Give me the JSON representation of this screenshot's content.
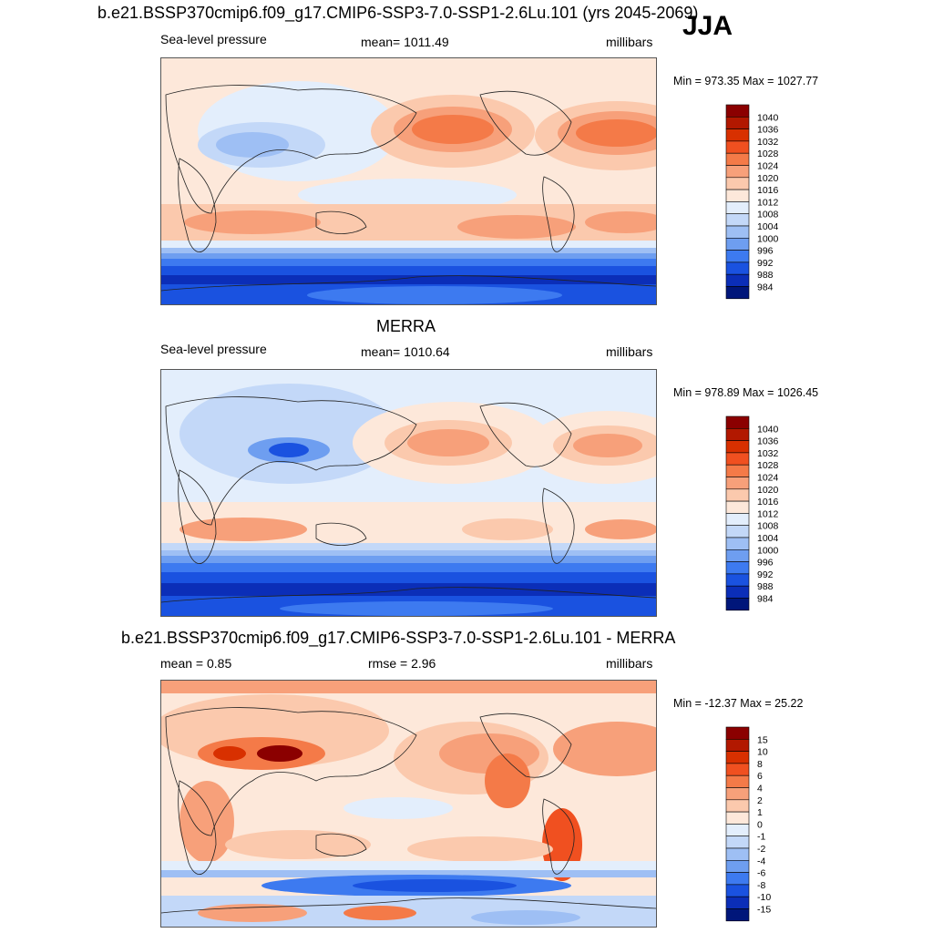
{
  "figure": {
    "title": "b.e21.BSSP370cmip6.f09_g17.CMIP6-SSP3-7.0-SSP1-2.6Lu.101 (yrs 2045-2069)",
    "season": "JJA"
  },
  "chart_data": [
    {
      "type": "heatmap",
      "title": "b.e21.BSSP370cmip6.f09_g17.CMIP6-SSP3-7.0-SSP1-2.6Lu.101 (yrs 2045-2069)",
      "left_label": "Sea-level pressure",
      "center_label": "mean= 1011.49",
      "units": "millibars",
      "minmax": "Min = 973.35 Max = 1027.77",
      "mean": 1011.49,
      "min": 973.35,
      "max": 1027.77,
      "colorbar_levels": [
        "1040",
        "1036",
        "1032",
        "1028",
        "1024",
        "1020",
        "1016",
        "1012",
        "1008",
        "1004",
        "1000",
        "996",
        "992",
        "988",
        "984"
      ],
      "colorbar_colors": [
        "#8b0000",
        "#b21800",
        "#d83000",
        "#f05020",
        "#f47a48",
        "#f7a07a",
        "#fbc9ad",
        "#fde8da",
        "#e3eefc",
        "#c3d8f8",
        "#9ebff4",
        "#6e9ef0",
        "#3d7af0",
        "#1a52e0",
        "#0b2eb8",
        "#00167a"
      ]
    },
    {
      "type": "heatmap",
      "title": "MERRA",
      "left_label": "Sea-level pressure",
      "center_label": "mean= 1010.64",
      "units": "millibars",
      "minmax": "Min = 978.89 Max = 1026.45",
      "mean": 1010.64,
      "min": 978.89,
      "max": 1026.45,
      "colorbar_levels": [
        "1040",
        "1036",
        "1032",
        "1028",
        "1024",
        "1020",
        "1016",
        "1012",
        "1008",
        "1004",
        "1000",
        "996",
        "992",
        "988",
        "984"
      ],
      "colorbar_colors": [
        "#8b0000",
        "#b21800",
        "#d83000",
        "#f05020",
        "#f47a48",
        "#f7a07a",
        "#fbc9ad",
        "#fde8da",
        "#e3eefc",
        "#c3d8f8",
        "#9ebff4",
        "#6e9ef0",
        "#3d7af0",
        "#1a52e0",
        "#0b2eb8",
        "#00167a"
      ]
    },
    {
      "type": "heatmap",
      "title": "b.e21.BSSP370cmip6.f09_g17.CMIP6-SSP3-7.0-SSP1-2.6Lu.101 - MERRA",
      "left_label": "mean =   0.85",
      "center_label": "rmse =   2.96",
      "units": "millibars",
      "minmax": "Min = -12.37 Max =  25.22",
      "mean": 0.85,
      "rmse": 2.96,
      "min": -12.37,
      "max": 25.22,
      "colorbar_levels": [
        "15",
        "10",
        "8",
        "6",
        "4",
        "2",
        "1",
        "0",
        "-1",
        "-2",
        "-4",
        "-6",
        "-8",
        "-10",
        "-15"
      ],
      "colorbar_colors": [
        "#8b0000",
        "#b21800",
        "#d83000",
        "#f05020",
        "#f47a48",
        "#f7a07a",
        "#fbc9ad",
        "#fde8da",
        "#e3eefc",
        "#c3d8f8",
        "#9ebff4",
        "#6e9ef0",
        "#3d7af0",
        "#1a52e0",
        "#0b2eb8",
        "#00167a"
      ]
    }
  ]
}
